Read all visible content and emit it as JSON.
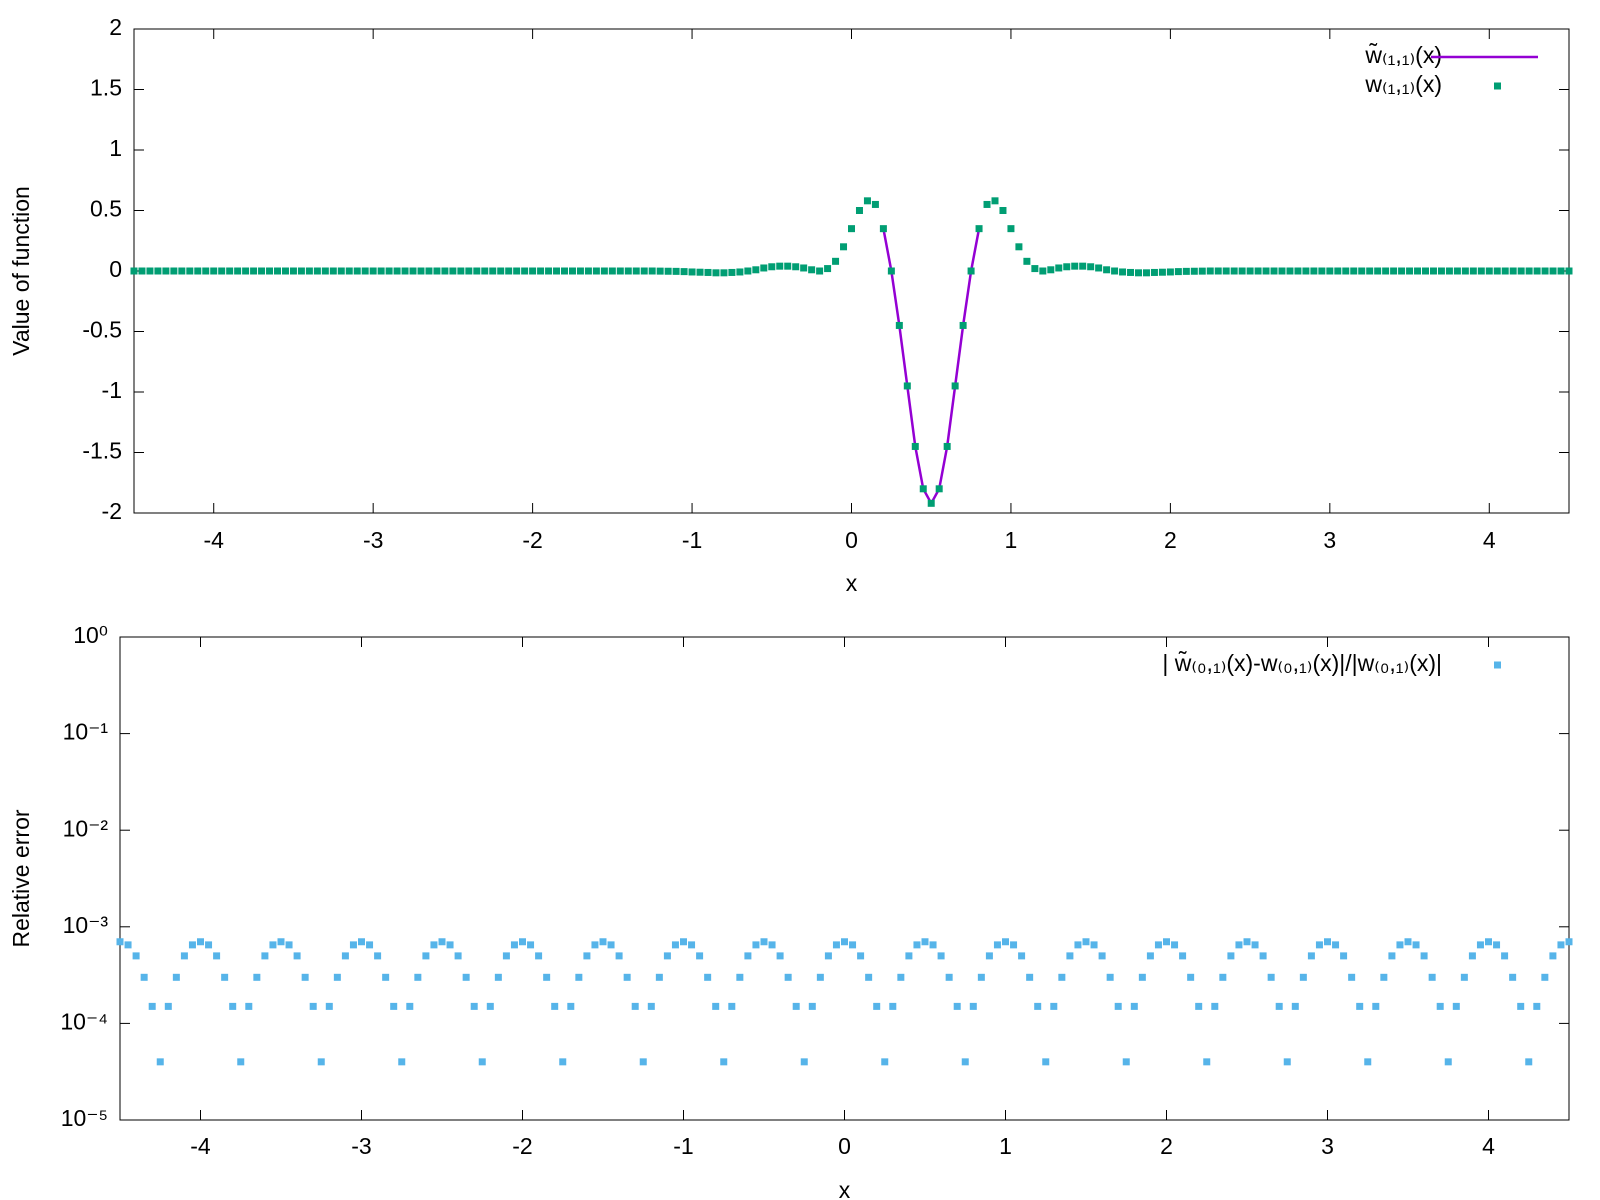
{
  "chart_data": [
    {
      "type": "line",
      "x_label": "x",
      "y_label": "Value of function",
      "xlim": [
        -4.5,
        4.5
      ],
      "ylim": [
        -2,
        2
      ],
      "xticks": [
        -4,
        -3,
        -2,
        -1,
        0,
        1,
        2,
        3,
        4
      ],
      "yticks": [
        -2,
        -1.5,
        -1,
        -0.5,
        0,
        0.5,
        1,
        1.5,
        2
      ],
      "legend": "top-right",
      "series": [
        {
          "name": "w̃₍₁,₁₎(x)",
          "color": "#9400d3",
          "style": "lines",
          "x": [
            0.2,
            0.25,
            0.3,
            0.35,
            0.4,
            0.45,
            0.5,
            0.55,
            0.6,
            0.65,
            0.7,
            0.75,
            0.8
          ],
          "values": [
            0.35,
            0,
            -0.45,
            -0.95,
            -1.45,
            -1.8,
            -1.92,
            -1.8,
            -1.45,
            -0.95,
            -0.45,
            0,
            0.35
          ]
        },
        {
          "name": "w₍₁,₁₎(x)",
          "color": "#009e73",
          "style": "points",
          "x": [
            -4.5,
            -4.45,
            -4.4,
            -4.35,
            -4.3,
            -4.25,
            -4.2,
            -4.15,
            -4.1,
            -4.05,
            -4,
            -3.95,
            -3.9,
            -3.85,
            -3.8,
            -3.75,
            -3.7,
            -3.65,
            -3.6,
            -3.55,
            -3.5,
            -3.45,
            -3.4,
            -3.35,
            -3.3,
            -3.25,
            -3.2,
            -3.15,
            -3.1,
            -3.05,
            -3,
            -2.95,
            -2.9,
            -2.85,
            -2.8,
            -2.75,
            -2.7,
            -2.65,
            -2.6,
            -2.55,
            -2.5,
            -2.45,
            -2.4,
            -2.35,
            -2.3,
            -2.25,
            -2.2,
            -2.15,
            -2.1,
            -2.05,
            -2,
            -1.95,
            -1.9,
            -1.85,
            -1.8,
            -1.75,
            -1.7,
            -1.65,
            -1.6,
            -1.55,
            -1.5,
            -1.45,
            -1.4,
            -1.35,
            -1.3,
            -1.25,
            -1.2,
            -1.15,
            -1.1,
            -1.05,
            -1,
            -0.95,
            -0.9,
            -0.85,
            -0.8,
            -0.75,
            -0.7,
            -0.65,
            -0.6,
            -0.55,
            -0.5,
            -0.45,
            -0.4,
            -0.35,
            -0.3,
            -0.25,
            -0.2,
            -0.15,
            -0.1,
            -0.05,
            0,
            0.05,
            0.1,
            0.15,
            0.2,
            0.25,
            0.3,
            0.35,
            0.4,
            0.45,
            0.5,
            0.55,
            0.6,
            0.65,
            0.7,
            0.75,
            0.8,
            0.85,
            0.9,
            0.95,
            1,
            1.05,
            1.1,
            1.15,
            1.2,
            1.25,
            1.3,
            1.35,
            1.4,
            1.45,
            1.5,
            1.55,
            1.6,
            1.65,
            1.7,
            1.75,
            1.8,
            1.85,
            1.9,
            1.95,
            2,
            2.05,
            2.1,
            2.15,
            2.2,
            2.25,
            2.3,
            2.35,
            2.4,
            2.45,
            2.5,
            2.55,
            2.6,
            2.65,
            2.7,
            2.75,
            2.8,
            2.85,
            2.9,
            2.95,
            3,
            3.05,
            3.1,
            3.15,
            3.2,
            3.25,
            3.3,
            3.35,
            3.4,
            3.45,
            3.5,
            3.55,
            3.6,
            3.65,
            3.7,
            3.75,
            3.8,
            3.85,
            3.9,
            3.95,
            4,
            4.05,
            4.1,
            4.15,
            4.2,
            4.25,
            4.3,
            4.35,
            4.4,
            4.45,
            4.5
          ],
          "values": [
            0,
            0,
            0,
            0,
            0,
            0,
            0,
            0,
            0,
            0,
            0,
            0,
            0,
            0,
            0,
            0,
            0,
            0,
            0,
            0,
            0,
            0,
            0,
            0,
            0,
            0,
            0,
            0,
            0,
            0,
            0,
            0,
            0,
            0,
            0,
            0,
            0,
            0,
            0,
            0,
            0,
            0,
            0,
            0,
            0,
            0,
            0,
            0,
            0,
            0,
            0,
            0,
            0,
            0,
            0,
            0,
            0,
            0,
            0,
            0,
            0,
            0,
            0,
            0,
            0,
            0,
            -0.001,
            -0.002,
            -0.003,
            -0.005,
            -0.008,
            -0.01,
            -0.012,
            -0.015,
            -0.015,
            -0.012,
            -0.008,
            0,
            0.01,
            0.025,
            0.035,
            0.04,
            0.04,
            0.035,
            0.025,
            0.01,
            0,
            0.02,
            0.08,
            0.2,
            0.35,
            0.5,
            0.58,
            0.55,
            0.35,
            0,
            -0.45,
            -0.95,
            -1.45,
            -1.8,
            -1.92,
            -1.8,
            -1.45,
            -0.95,
            -0.45,
            0,
            0.35,
            0.55,
            0.58,
            0.5,
            0.35,
            0.2,
            0.08,
            0.02,
            0,
            0.01,
            0.025,
            0.035,
            0.04,
            0.04,
            0.035,
            0.025,
            0.01,
            0,
            -0.008,
            -0.012,
            -0.015,
            -0.015,
            -0.012,
            -0.01,
            -0.008,
            -0.005,
            -0.003,
            -0.002,
            -0.001,
            0,
            0,
            0,
            0,
            0,
            0,
            0,
            0,
            0,
            0,
            0,
            0,
            0,
            0,
            0,
            0,
            0,
            0,
            0,
            0,
            0,
            0,
            0,
            0,
            0,
            0,
            0,
            0,
            0,
            0,
            0,
            0,
            0,
            0,
            0,
            0,
            0,
            0,
            0,
            0,
            0,
            0,
            0,
            0,
            0,
            0
          ]
        }
      ]
    },
    {
      "type": "scatter",
      "x_label": "x",
      "y_label": "Relative error",
      "xlim": [
        -4.5,
        4.5
      ],
      "ylim": [
        1e-05,
        1
      ],
      "ylog": true,
      "xticks": [
        -4,
        -3,
        -2,
        -1,
        0,
        1,
        2,
        3,
        4
      ],
      "yticks": [
        {
          "value": 1e-05,
          "label": "10⁻⁵"
        },
        {
          "value": 0.0001,
          "label": "10⁻⁴"
        },
        {
          "value": 0.001,
          "label": "10⁻³"
        },
        {
          "value": 0.01,
          "label": "10⁻²"
        },
        {
          "value": 0.1,
          "label": "10⁻¹"
        },
        {
          "value": 1,
          "label": "10⁰"
        }
      ],
      "legend": "top-right",
      "series": [
        {
          "name": "| w̃₍₀,₁₎(x)-w₍₀,₁₎(x)|/|w₍₀,₁₎(x)|",
          "color": "#56b4e9",
          "style": "points",
          "x": [
            -4.5,
            -4.45,
            -4.4,
            -4.35,
            -4.3,
            -4.25,
            -4.2,
            -4.15,
            -4.1,
            -4.05,
            -4,
            -3.95,
            -3.9,
            -3.85,
            -3.8,
            -3.75,
            -3.7,
            -3.65,
            -3.6,
            -3.55,
            -3.5,
            -3.45,
            -3.4,
            -3.35,
            -3.3,
            -3.25,
            -3.2,
            -3.15,
            -3.1,
            -3.05,
            -3,
            -2.95,
            -2.9,
            -2.85,
            -2.8,
            -2.75,
            -2.7,
            -2.65,
            -2.6,
            -2.55,
            -2.5,
            -2.45,
            -2.4,
            -2.35,
            -2.3,
            -2.25,
            -2.2,
            -2.15,
            -2.1,
            -2.05,
            -2,
            -1.95,
            -1.9,
            -1.85,
            -1.8,
            -1.75,
            -1.7,
            -1.65,
            -1.6,
            -1.55,
            -1.5,
            -1.45,
            -1.4,
            -1.35,
            -1.3,
            -1.25,
            -1.2,
            -1.15,
            -1.1,
            -1.05,
            -1,
            -0.95,
            -0.9,
            -0.85,
            -0.8,
            -0.75,
            -0.7,
            -0.65,
            -0.6,
            -0.55,
            -0.5,
            -0.45,
            -0.4,
            -0.35,
            -0.3,
            -0.25,
            -0.2,
            -0.15,
            -0.1,
            -0.05,
            0,
            0.05,
            0.1,
            0.15,
            0.2,
            0.25,
            0.3,
            0.35,
            0.4,
            0.45,
            0.5,
            0.55,
            0.6,
            0.65,
            0.7,
            0.75,
            0.8,
            0.85,
            0.9,
            0.95,
            1,
            1.05,
            1.1,
            1.15,
            1.2,
            1.25,
            1.3,
            1.35,
            1.4,
            1.45,
            1.5,
            1.55,
            1.6,
            1.65,
            1.7,
            1.75,
            1.8,
            1.85,
            1.9,
            1.95,
            2,
            2.05,
            2.1,
            2.15,
            2.2,
            2.25,
            2.3,
            2.35,
            2.4,
            2.45,
            2.5,
            2.55,
            2.6,
            2.65,
            2.7,
            2.75,
            2.8,
            2.85,
            2.9,
            2.95,
            3,
            3.05,
            3.1,
            3.15,
            3.2,
            3.25,
            3.3,
            3.35,
            3.4,
            3.45,
            3.5,
            3.55,
            3.6,
            3.65,
            3.7,
            3.75,
            3.8,
            3.85,
            3.9,
            3.95,
            4,
            4.05,
            4.1,
            4.15,
            4.2,
            4.25,
            4.3,
            4.35,
            4.4,
            4.45,
            4.5
          ],
          "values": [
            0.0007,
            0.00065,
            0.0005,
            0.0003,
            0.00015,
            4e-05,
            0.00015,
            0.0003,
            0.0005,
            0.00065,
            0.0007,
            0.00065,
            0.0005,
            0.0003,
            0.00015,
            4e-05,
            0.00015,
            0.0003,
            0.0005,
            0.00065,
            0.0007,
            0.00065,
            0.0005,
            0.0003,
            0.00015,
            4e-05,
            0.00015,
            0.0003,
            0.0005,
            0.00065,
            0.0007,
            0.00065,
            0.0005,
            0.0003,
            0.00015,
            4e-05,
            0.00015,
            0.0003,
            0.0005,
            0.00065,
            0.0007,
            0.00065,
            0.0005,
            0.0003,
            0.00015,
            4e-05,
            0.00015,
            0.0003,
            0.0005,
            0.00065,
            0.0007,
            0.00065,
            0.0005,
            0.0003,
            0.00015,
            4e-05,
            0.00015,
            0.0003,
            0.0005,
            0.00065,
            0.0007,
            0.00065,
            0.0005,
            0.0003,
            0.00015,
            4e-05,
            0.00015,
            0.0003,
            0.0005,
            0.00065,
            0.0007,
            0.00065,
            0.0005,
            0.0003,
            0.00015,
            4e-05,
            0.00015,
            0.0003,
            0.0005,
            0.00065,
            0.0007,
            0.00065,
            0.0005,
            0.0003,
            0.00015,
            4e-05,
            0.00015,
            0.0003,
            0.0005,
            0.00065,
            0.0007,
            0.00065,
            0.0005,
            0.0003,
            0.00015,
            4e-05,
            0.00015,
            0.0003,
            0.0005,
            0.00065,
            0.0007,
            0.00065,
            0.0005,
            0.0003,
            0.00015,
            4e-05,
            0.00015,
            0.0003,
            0.0005,
            0.00065,
            0.0007,
            0.00065,
            0.0005,
            0.0003,
            0.00015,
            4e-05,
            0.00015,
            0.0003,
            0.0005,
            0.00065,
            0.0007,
            0.00065,
            0.0005,
            0.0003,
            0.00015,
            4e-05,
            0.00015,
            0.0003,
            0.0005,
            0.00065,
            0.0007,
            0.00065,
            0.0005,
            0.0003,
            0.00015,
            4e-05,
            0.00015,
            0.0003,
            0.0005,
            0.00065,
            0.0007,
            0.00065,
            0.0005,
            0.0003,
            0.00015,
            4e-05,
            0.00015,
            0.0003,
            0.0005,
            0.00065,
            0.0007,
            0.00065,
            0.0005,
            0.0003,
            0.00015,
            4e-05,
            0.00015,
            0.0003,
            0.0005,
            0.00065,
            0.0007,
            0.00065,
            0.0005,
            0.0003,
            0.00015,
            4e-05,
            0.00015,
            0.0003,
            0.0005,
            0.00065,
            0.0007,
            0.00065,
            0.0005,
            0.0003,
            0.00015,
            4e-05,
            0.00015,
            0.0003,
            0.0005,
            0.00065,
            0.0007
          ]
        }
      ]
    }
  ]
}
